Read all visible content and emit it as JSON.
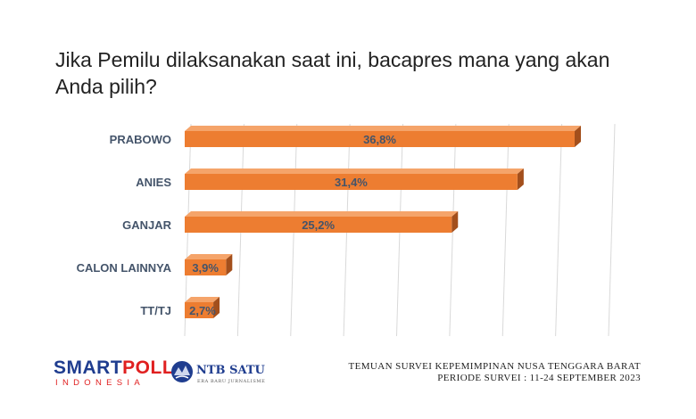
{
  "header": {
    "title": "Jika Pemilu dilaksanakan saat ini, bacapres mana yang akan Anda pilih?"
  },
  "chart_data": {
    "type": "bar",
    "orientation": "horizontal",
    "categories": [
      "PRABOWO",
      "ANIES",
      "GANJAR",
      "CALON LAINNYA",
      "TT/TJ"
    ],
    "values": [
      36.8,
      31.4,
      25.2,
      3.9,
      2.7
    ],
    "data_labels": [
      "36,8%",
      "31,4%",
      "25,2%",
      "3,9%",
      "2,7%"
    ],
    "unit": "%",
    "xlim": [
      0,
      40
    ],
    "grid": true,
    "legend": "none",
    "bar_color": "#ed7d31",
    "bar_side_color": "#a34f1c",
    "bar_top_color": "#f5a46a"
  },
  "branding": {
    "smart": "SMART",
    "poll": "POLL",
    "sub": "INDONESIA",
    "partner_name": "NTB SATU",
    "partner_tagline": "ERA BARU JURNALISME"
  },
  "footer": {
    "line1": "TEMUAN SURVEI KEPEMIMPINAN NUSA TENGGARA BARAT",
    "line2": "PERIODE SURVEI : 11-24 SEPTEMBER 2023"
  }
}
